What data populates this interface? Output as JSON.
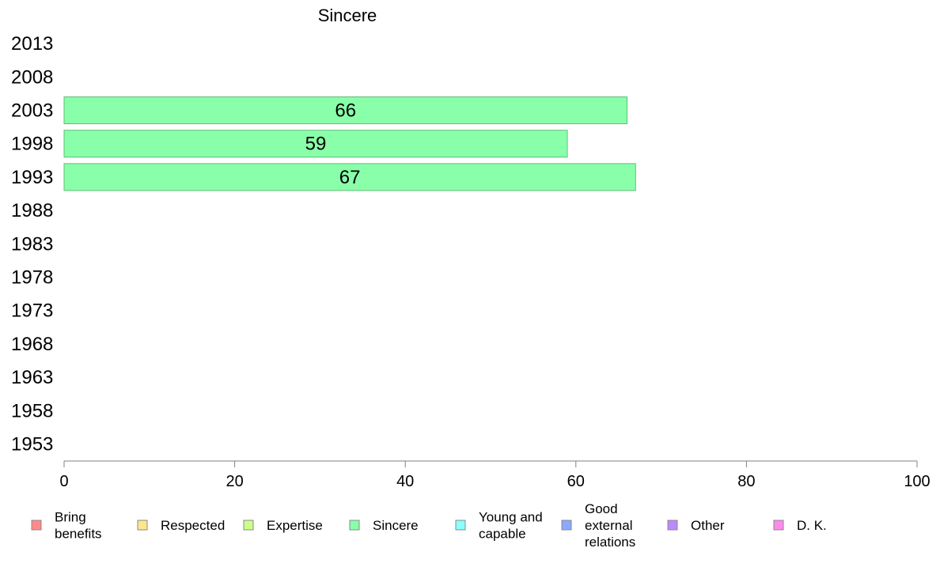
{
  "chart_data": {
    "type": "bar",
    "orientation": "horizontal",
    "title": "Sincere",
    "categories": [
      "2013",
      "2008",
      "2003",
      "1998",
      "1993",
      "1988",
      "1983",
      "1978",
      "1973",
      "1968",
      "1963",
      "1958",
      "1953"
    ],
    "series": [
      {
        "name": "Sincere",
        "values": [
          null,
          null,
          66,
          59,
          67,
          null,
          null,
          null,
          null,
          null,
          null,
          null,
          null
        ]
      }
    ],
    "data_labels": [
      "",
      "",
      "66",
      "59",
      "67",
      "",
      "",
      "",
      "",
      "",
      "",
      "",
      ""
    ],
    "xlim": [
      0,
      100
    ],
    "xticks": [
      0,
      20,
      40,
      60,
      80,
      100
    ],
    "xtick_labels": [
      "0",
      "20",
      "40",
      "60",
      "80",
      "100"
    ],
    "grid": false,
    "legend_position": "bottom",
    "legend": [
      {
        "label": "Bring benefits",
        "color": "#ff8a8a"
      },
      {
        "label": "Respected",
        "color": "#ffe68a"
      },
      {
        "label": "Expertise",
        "color": "#ccff8a"
      },
      {
        "label": "Sincere",
        "color": "#8affaa"
      },
      {
        "label": "Young and capable",
        "color": "#8affff"
      },
      {
        "label": "Good external relations",
        "color": "#8aaaff"
      },
      {
        "label": "Other",
        "color": "#bb8aff"
      },
      {
        "label": "D. K.",
        "color": "#ff8aee"
      }
    ],
    "bar_color": "#8affaa",
    "bar_stroke": "#5cbf78",
    "axis_color": "#808080"
  }
}
